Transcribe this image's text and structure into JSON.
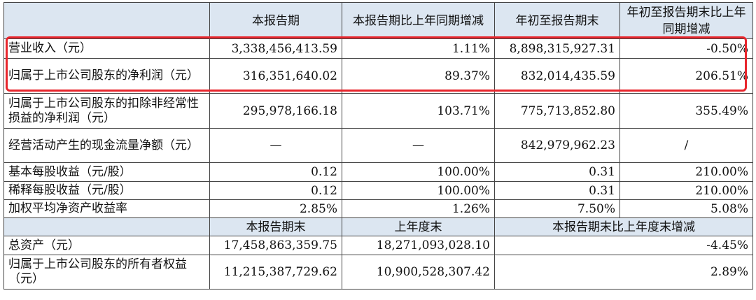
{
  "header": {
    "col1": "本报告期",
    "col2": "本报告期比上年同期增减",
    "col3": "年初至报告期末",
    "col4": "年初至报告期末比上年同期增减"
  },
  "rows": [
    {
      "label": "营业收入（元）",
      "v1": "3,338,456,413.59",
      "v2": "1.11%",
      "v3": "8,898,315,927.31",
      "v4": "-0.50%"
    },
    {
      "label": "归属于上市公司股东的净利润（元）",
      "v1": "316,351,640.02",
      "v2": "89.37%",
      "v3": "832,014,435.59",
      "v4": "206.51%"
    },
    {
      "label": "归属于上市公司股东的扣除非经常性损益的净利润（元）",
      "v1": "295,978,166.18",
      "v2": "103.71%",
      "v3": "775,713,852.80",
      "v4": "355.49%"
    },
    {
      "label": "经营活动产生的现金流量净额（元）",
      "v1": "—",
      "v2": "—",
      "v3": "842,979,962.23",
      "v4": "/"
    },
    {
      "label": "基本每股收益（元/股）",
      "v1": "0.12",
      "v2": "100.00%",
      "v3": "0.31",
      "v4": "210.00%"
    },
    {
      "label": "稀释每股收益（元/股）",
      "v1": "0.12",
      "v2": "100.00%",
      "v3": "0.31",
      "v4": "210.00%"
    },
    {
      "label": "加权平均净资产收益率",
      "v1": "2.85%",
      "v2": "1.26%",
      "v3": "7.50%",
      "v4": "5.08%"
    }
  ],
  "header2": {
    "col1": "本报告期末",
    "col2": "上年度末",
    "col3": "本报告期末比上年度末增减"
  },
  "rows2": [
    {
      "label": "总资产（元）",
      "v1": "17,458,863,359.75",
      "v2": "18,271,093,028.10",
      "v3": "-4.45%"
    },
    {
      "label": "归属于上市公司股东的所有者权益（元）",
      "v1": "11,215,387,729.62",
      "v2": "10,900,528,307.42",
      "v3": "2.89%"
    }
  ],
  "highlight_color": "#e8262d",
  "header_bg": "#dce6f1"
}
